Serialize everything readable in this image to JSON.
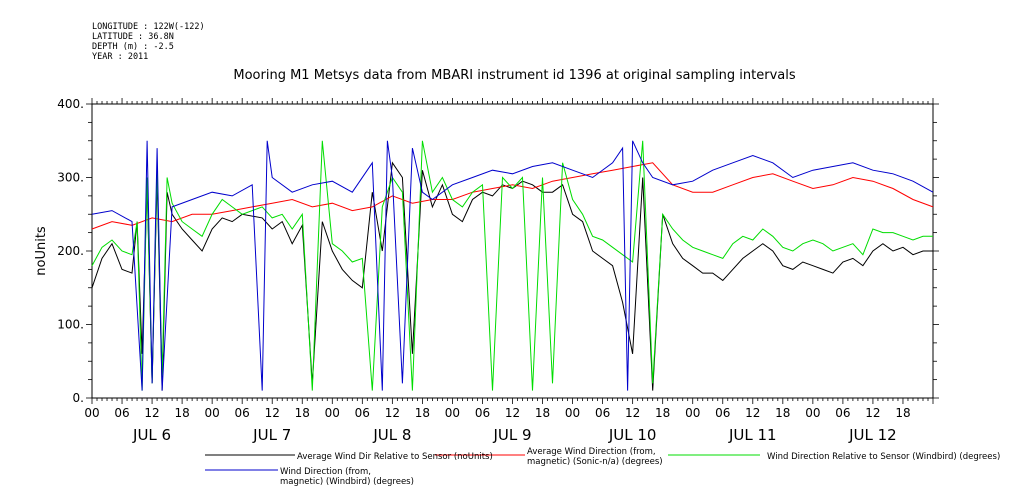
{
  "meta": {
    "longitude": "LONGITUDE : 122W(-122)",
    "latitude": "LATITUDE : 36.8N",
    "depth": "DEPTH (m) : -2.5",
    "year": "YEAR : 2011"
  },
  "chart_data": {
    "type": "line",
    "title": "Mooring M1 Metsys data from MBARI instrument id 1396 at original sampling intervals",
    "xlabel": "",
    "ylabel": "noUnits",
    "ylim": [
      0,
      400
    ],
    "yticks": [
      0,
      100,
      200,
      300,
      400
    ],
    "ytick_labels": [
      "0.",
      "100.",
      "200.",
      "300.",
      "400."
    ],
    "xlim": [
      0,
      168
    ],
    "hour_tick_labels": [
      "00",
      "06",
      "12",
      "18"
    ],
    "day_labels": [
      "JUL 6",
      "JUL 7",
      "JUL 8",
      "JUL 9",
      "JUL 10",
      "JUL 11",
      "JUL 12"
    ],
    "grid": false,
    "legend_position": "bottom",
    "x_unit": "hours since JUL 6 00:00",
    "series": [
      {
        "name": "Average Wind Dir Relative to Sensor (noUnits)",
        "color": "#000000",
        "x": [
          0,
          2,
          4,
          6,
          8,
          9,
          10,
          11,
          12,
          13,
          14,
          15,
          16,
          18,
          20,
          22,
          24,
          26,
          28,
          30,
          34,
          36,
          38,
          40,
          42,
          44,
          46,
          48,
          50,
          52,
          54,
          56,
          58,
          60,
          62,
          64,
          66,
          68,
          70,
          72,
          74,
          76,
          78,
          80,
          82,
          84,
          86,
          88,
          90,
          92,
          94,
          96,
          98,
          100,
          102,
          104,
          106,
          108,
          110,
          112,
          114,
          116,
          118,
          120,
          122,
          124,
          126,
          128,
          130,
          132,
          134,
          136,
          138,
          140,
          142,
          144,
          146,
          148,
          150,
          152,
          154,
          156,
          158,
          160,
          162,
          164,
          166,
          168
        ],
        "y": [
          150,
          190,
          210,
          175,
          170,
          240,
          60,
          290,
          20,
          300,
          10,
          280,
          250,
          230,
          215,
          200,
          230,
          245,
          240,
          250,
          245,
          230,
          240,
          210,
          235,
          20,
          240,
          200,
          175,
          160,
          150,
          280,
          200,
          320,
          300,
          60,
          310,
          260,
          290,
          250,
          240,
          270,
          280,
          275,
          290,
          285,
          295,
          290,
          280,
          280,
          290,
          250,
          240,
          200,
          190,
          180,
          130,
          60,
          300,
          10,
          250,
          210,
          190,
          180,
          170,
          170,
          160,
          175,
          190,
          200,
          210,
          200,
          180,
          175,
          185,
          180,
          175,
          170,
          185,
          190,
          180,
          200,
          210,
          200,
          205,
          195,
          200,
          200
        ]
      },
      {
        "name": "Average Wind Direction (from, magnetic) (Sonic-n/a) (degrees)",
        "color": "#ff0000",
        "x": [
          0,
          4,
          8,
          12,
          16,
          20,
          24,
          28,
          32,
          36,
          40,
          44,
          48,
          52,
          56,
          60,
          64,
          68,
          72,
          76,
          80,
          84,
          88,
          92,
          96,
          100,
          104,
          108,
          112,
          116,
          120,
          124,
          128,
          132,
          136,
          140,
          144,
          148,
          152,
          156,
          160,
          164,
          168
        ],
        "y": [
          230,
          240,
          235,
          245,
          240,
          250,
          250,
          255,
          260,
          265,
          270,
          260,
          265,
          255,
          260,
          275,
          265,
          270,
          270,
          280,
          285,
          290,
          285,
          295,
          300,
          305,
          310,
          315,
          320,
          290,
          280,
          280,
          290,
          300,
          305,
          295,
          285,
          290,
          300,
          295,
          285,
          270,
          260
        ]
      },
      {
        "name": "Wind Direction Relative to Sensor (Windbird) (degrees)",
        "color": "#00dd00",
        "x": [
          0,
          2,
          4,
          6,
          8,
          9,
          10,
          11,
          12,
          13,
          14,
          15,
          16,
          18,
          20,
          22,
          24,
          26,
          28,
          30,
          34,
          36,
          38,
          40,
          42,
          44,
          46,
          48,
          50,
          52,
          54,
          56,
          58,
          60,
          62,
          64,
          66,
          68,
          70,
          72,
          74,
          76,
          78,
          80,
          82,
          84,
          86,
          88,
          90,
          92,
          94,
          96,
          98,
          100,
          102,
          104,
          106,
          108,
          110,
          112,
          114,
          116,
          118,
          120,
          122,
          124,
          126,
          128,
          130,
          132,
          134,
          136,
          138,
          140,
          142,
          144,
          146,
          148,
          150,
          152,
          154,
          156,
          158,
          160,
          162,
          164,
          166,
          168
        ],
        "y": [
          180,
          205,
          215,
          200,
          195,
          240,
          10,
          300,
          20,
          310,
          30,
          300,
          265,
          240,
          230,
          220,
          250,
          270,
          260,
          250,
          260,
          245,
          250,
          230,
          250,
          10,
          350,
          210,
          200,
          185,
          190,
          10,
          260,
          300,
          280,
          10,
          350,
          280,
          300,
          270,
          260,
          280,
          290,
          10,
          300,
          285,
          300,
          10,
          300,
          20,
          320,
          270,
          250,
          220,
          215,
          205,
          195,
          185,
          350,
          20,
          250,
          230,
          215,
          205,
          200,
          195,
          190,
          210,
          220,
          215,
          230,
          220,
          205,
          200,
          210,
          215,
          210,
          200,
          205,
          210,
          195,
          230,
          225,
          225,
          220,
          215,
          220,
          220
        ]
      },
      {
        "name": "Wind Direction (from, magnetic) (Windbird) (degrees)",
        "color": "#0000cc",
        "x": [
          0,
          4,
          8,
          10,
          11,
          12,
          13,
          14,
          16,
          20,
          24,
          28,
          32,
          34,
          35,
          36,
          40,
          44,
          48,
          52,
          56,
          58,
          59,
          60,
          62,
          64,
          66,
          68,
          72,
          76,
          80,
          84,
          88,
          92,
          96,
          100,
          104,
          106,
          107,
          108,
          110,
          112,
          116,
          120,
          124,
          128,
          132,
          136,
          140,
          144,
          148,
          152,
          156,
          160,
          164,
          168
        ],
        "y": [
          250,
          255,
          240,
          10,
          350,
          20,
          340,
          10,
          260,
          270,
          280,
          275,
          290,
          10,
          350,
          300,
          280,
          290,
          295,
          280,
          320,
          10,
          350,
          300,
          20,
          340,
          280,
          270,
          290,
          300,
          310,
          305,
          315,
          320,
          310,
          300,
          320,
          340,
          10,
          350,
          320,
          300,
          290,
          295,
          310,
          320,
          330,
          320,
          300,
          310,
          315,
          320,
          310,
          305,
          295,
          280
        ]
      }
    ]
  },
  "legend": {
    "black_label": "Average Wind Dir Relative to Sensor (noUnits)",
    "red_label": "Average Wind Direction (from,\n   magnetic) (Sonic-n/a) (degrees)",
    "green_label": "Wind Direction Relative to Sensor (Windbird) (degrees)",
    "blue_label": "Wind Direction (from,\n   magnetic) (Windbird) (degrees)"
  }
}
